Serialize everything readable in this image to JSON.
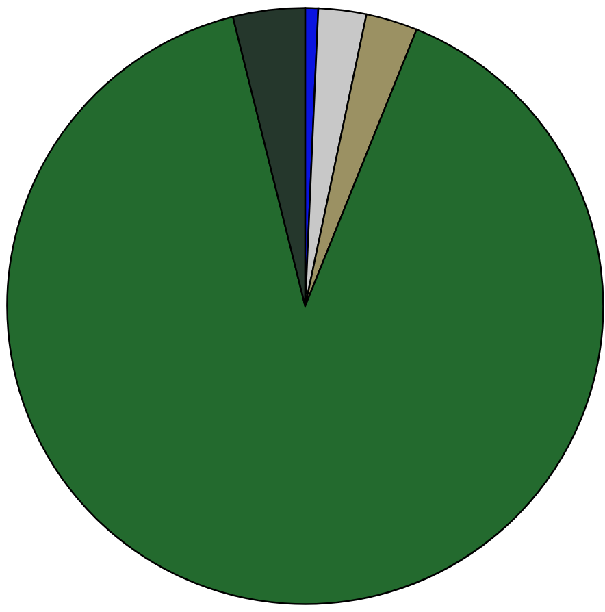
{
  "chart_data": {
    "type": "pie",
    "categories": [
      null,
      null,
      null,
      null,
      null
    ],
    "values": [
      0.7,
      2.6,
      2.8,
      90.0,
      3.9
    ],
    "colors": [
      "#0a14e0",
      "#c8c8c8",
      "#9b9163",
      "#236a2e",
      "#25372c"
    ]
  }
}
